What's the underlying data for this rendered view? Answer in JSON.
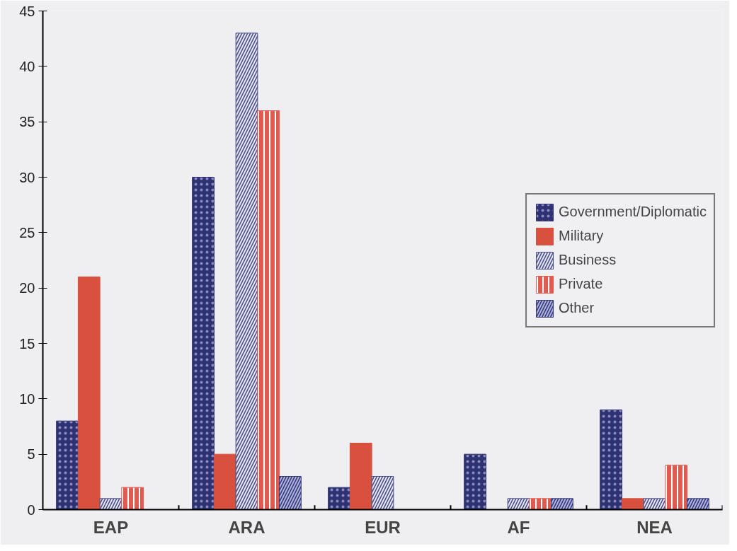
{
  "chart_data": {
    "type": "bar",
    "categories": [
      "EAP",
      "ARA",
      "EUR",
      "AF",
      "NEA"
    ],
    "series": [
      {
        "name": "Government/Diplomatic",
        "color": "#2e3272",
        "values": [
          8,
          30,
          2,
          5,
          9
        ]
      },
      {
        "name": "Military",
        "color": "#d9503f",
        "values": [
          21,
          5,
          6,
          0,
          1
        ]
      },
      {
        "name": "Business",
        "color": "#4a4f8a",
        "values": [
          1,
          43,
          3,
          1,
          1
        ]
      },
      {
        "name": "Private",
        "color": "#e05a4f",
        "values": [
          2,
          36,
          0,
          1,
          4
        ]
      },
      {
        "name": "Other",
        "color": "#343a7a",
        "values": [
          0,
          3,
          0,
          1,
          1
        ]
      }
    ],
    "ylim": [
      0,
      45
    ],
    "yticks": [
      0,
      5,
      10,
      15,
      20,
      25,
      30,
      35,
      40,
      45
    ],
    "grid": false,
    "legend": "right"
  }
}
